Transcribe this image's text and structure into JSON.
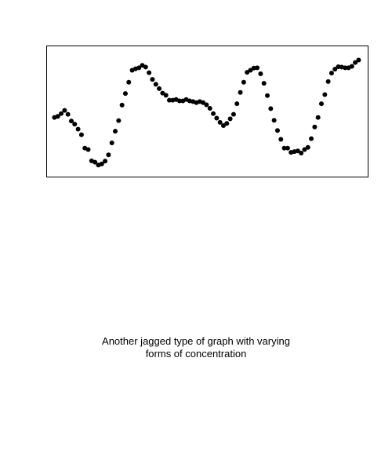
{
  "caption": {
    "line1": "Another jagged type of graph with varying",
    "line2": "forms of concentration"
  },
  "chart_data": {
    "type": "scatter",
    "title": "",
    "xlabel": "",
    "ylabel": "",
    "axes_visible": false,
    "grid": false,
    "marker_color": "#000000",
    "xlim": [
      -2.3,
      92.8
    ],
    "ylim": [
      -1.9,
      35.3
    ],
    "x": [
      0,
      1,
      2,
      3,
      4,
      5,
      6,
      7,
      8,
      9,
      10,
      11,
      12,
      13,
      14,
      15,
      16,
      17,
      18,
      19,
      20,
      21,
      22,
      23,
      24,
      25,
      26,
      27,
      28,
      29,
      30,
      31,
      32,
      33,
      34,
      35,
      36,
      37,
      38,
      39,
      40,
      41,
      42,
      43,
      44,
      45,
      46,
      47,
      48,
      49,
      50,
      51,
      52,
      53,
      54,
      55,
      56,
      57,
      58,
      59,
      60,
      61,
      62,
      63,
      64,
      65,
      66,
      67,
      68,
      69,
      70,
      71,
      72,
      73,
      74,
      75,
      76,
      77,
      78,
      79,
      80,
      81,
      82,
      83,
      84,
      85,
      86,
      87,
      88,
      89,
      90
    ],
    "y": [
      15.0,
      15.3,
      16.1,
      17.0,
      15.9,
      14.0,
      13.1,
      11.7,
      10.1,
      6.3,
      5.9,
      2.7,
      2.3,
      1.5,
      1.8,
      2.6,
      4.4,
      7.8,
      11.1,
      14.1,
      18.5,
      21.8,
      25.0,
      28.4,
      28.8,
      29.1,
      29.8,
      29.3,
      27.7,
      25.8,
      24.4,
      23.2,
      21.9,
      21.3,
      19.9,
      19.9,
      20.1,
      19.7,
      19.7,
      20.1,
      19.7,
      19.5,
      19.2,
      19.5,
      19.2,
      18.6,
      17.6,
      16.1,
      14.8,
      13.6,
      12.7,
      13.3,
      14.6,
      15.9,
      18.9,
      22.1,
      25.0,
      27.8,
      28.4,
      29.0,
      29.1,
      27.4,
      24.7,
      21.2,
      17.5,
      14.2,
      11.3,
      8.8,
      6.3,
      6.3,
      5.1,
      5.3,
      5.5,
      4.9,
      5.9,
      6.5,
      9.0,
      12.3,
      15.0,
      18.9,
      21.5,
      25.2,
      27.6,
      28.7,
      29.4,
      29.3,
      29.1,
      29.1,
      29.5,
      30.6,
      31.3
    ]
  }
}
